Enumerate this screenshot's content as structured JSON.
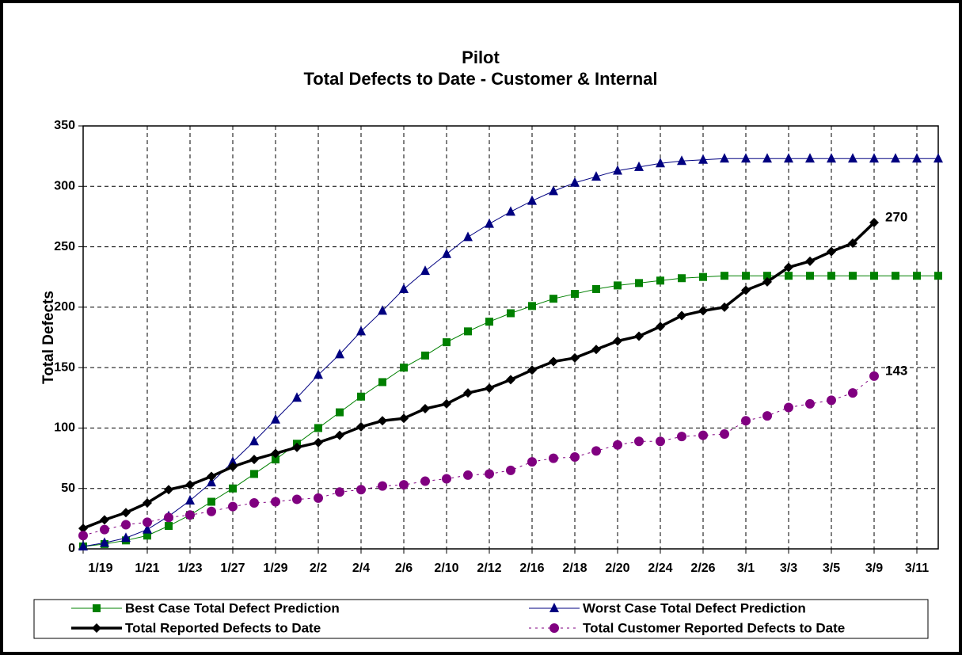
{
  "chart_data": {
    "type": "line",
    "title": "Pilot",
    "subtitle": "Total Defects to Date - Customer & Internal",
    "y_label": "Total Defects",
    "categories": [
      "1/19",
      null,
      null,
      "1/21",
      null,
      "1/23",
      null,
      "1/27",
      null,
      "1/29",
      null,
      "2/2",
      null,
      "2/4",
      null,
      "2/6",
      null,
      "2/10",
      null,
      "2/12",
      null,
      "2/16",
      null,
      "2/18",
      null,
      "2/20",
      null,
      "2/24",
      null,
      "2/26",
      null,
      "3/1",
      null,
      "3/3",
      null,
      "3/5",
      null,
      "3/9",
      null,
      "3/11",
      null
    ],
    "ylim": [
      0,
      350
    ],
    "yticks": [
      0,
      50,
      100,
      150,
      200,
      250,
      300,
      350
    ],
    "grid": true,
    "series": [
      {
        "name": "Best Case Total Defect Prediction",
        "color": "#008000",
        "marker": "square",
        "width": 1,
        "dash": "solid",
        "values": [
          2,
          4,
          7,
          11,
          19,
          28,
          39,
          50,
          62,
          74,
          87,
          100,
          113,
          126,
          138,
          150,
          160,
          171,
          180,
          188,
          195,
          201,
          207,
          211,
          215,
          218,
          220,
          222,
          224,
          225,
          226,
          226,
          226,
          226,
          226,
          226,
          226,
          226,
          226,
          226,
          226
        ]
      },
      {
        "name": "Worst Case Total Defect Prediction",
        "color": "#000080",
        "marker": "triangle",
        "width": 1,
        "dash": "solid",
        "values": [
          2,
          5,
          9,
          16,
          27,
          40,
          55,
          72,
          89,
          107,
          125,
          144,
          161,
          180,
          197,
          215,
          230,
          244,
          258,
          269,
          279,
          288,
          296,
          303,
          308,
          313,
          316,
          319,
          321,
          322,
          323,
          323,
          323,
          323,
          323,
          323,
          323,
          323,
          323,
          323,
          323
        ]
      },
      {
        "name": "Total Reported Defects to Date",
        "color": "#000000",
        "marker": "diamond",
        "width": 3.5,
        "dash": "solid",
        "data_labels": "last",
        "values": [
          17,
          24,
          30,
          38,
          49,
          53,
          60,
          68,
          74,
          79,
          84,
          88,
          94,
          101,
          106,
          108,
          116,
          120,
          129,
          133,
          140,
          148,
          155,
          158,
          165,
          172,
          176,
          184,
          193,
          197,
          200,
          214,
          221,
          233,
          238,
          246,
          253,
          270,
          null,
          null,
          null
        ]
      },
      {
        "name": "Total Customer Reported Defects to Date",
        "color": "#800080",
        "marker": "circle",
        "width": 1,
        "dash": "dotted",
        "data_labels": "last",
        "values": [
          11,
          16,
          20,
          22,
          26,
          28,
          31,
          35,
          38,
          39,
          41,
          42,
          47,
          49,
          52,
          53,
          56,
          58,
          61,
          62,
          65,
          72,
          75,
          76,
          81,
          86,
          89,
          89,
          93,
          94,
          95,
          106,
          110,
          117,
          120,
          123,
          129,
          143,
          null,
          null,
          null
        ]
      }
    ]
  }
}
